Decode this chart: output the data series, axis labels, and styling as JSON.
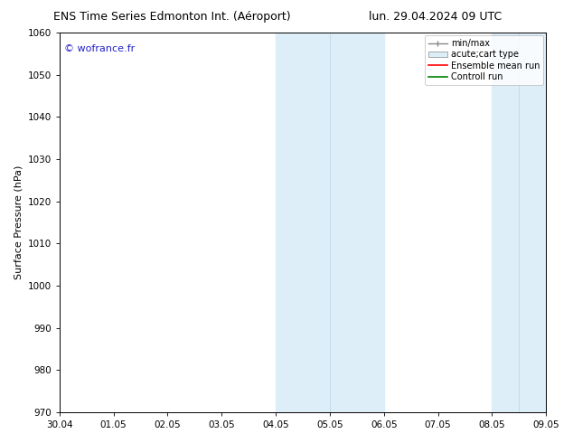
{
  "title_left": "ENS Time Series Edmonton Int. (Aéroport)",
  "title_right": "lun. 29.04.2024 09 UTC",
  "ylabel": "Surface Pressure (hPa)",
  "watermark": "© wofrance.fr",
  "ylim": [
    970,
    1060
  ],
  "yticks": [
    970,
    980,
    990,
    1000,
    1010,
    1020,
    1030,
    1040,
    1050,
    1060
  ],
  "xtick_labels": [
    "30.04",
    "01.05",
    "02.05",
    "03.05",
    "04.05",
    "05.05",
    "06.05",
    "07.05",
    "08.05",
    "09.05"
  ],
  "xtick_positions": [
    0,
    1,
    2,
    3,
    4,
    5,
    6,
    7,
    8,
    9
  ],
  "shaded_bands": [
    {
      "xmin": 4,
      "xmax": 6,
      "color": "#ddeef8"
    },
    {
      "xmin": 8,
      "xmax": 9,
      "color": "#ddeef8"
    }
  ],
  "inner_band_lines": [
    5,
    8.5
  ],
  "bg_color": "#ffffff",
  "plot_bg_color": "#ffffff",
  "watermark_color": "#2222cc",
  "title_fontsize": 9,
  "axis_label_fontsize": 8,
  "tick_fontsize": 7.5,
  "legend_fontsize": 7,
  "watermark_fontsize": 8
}
